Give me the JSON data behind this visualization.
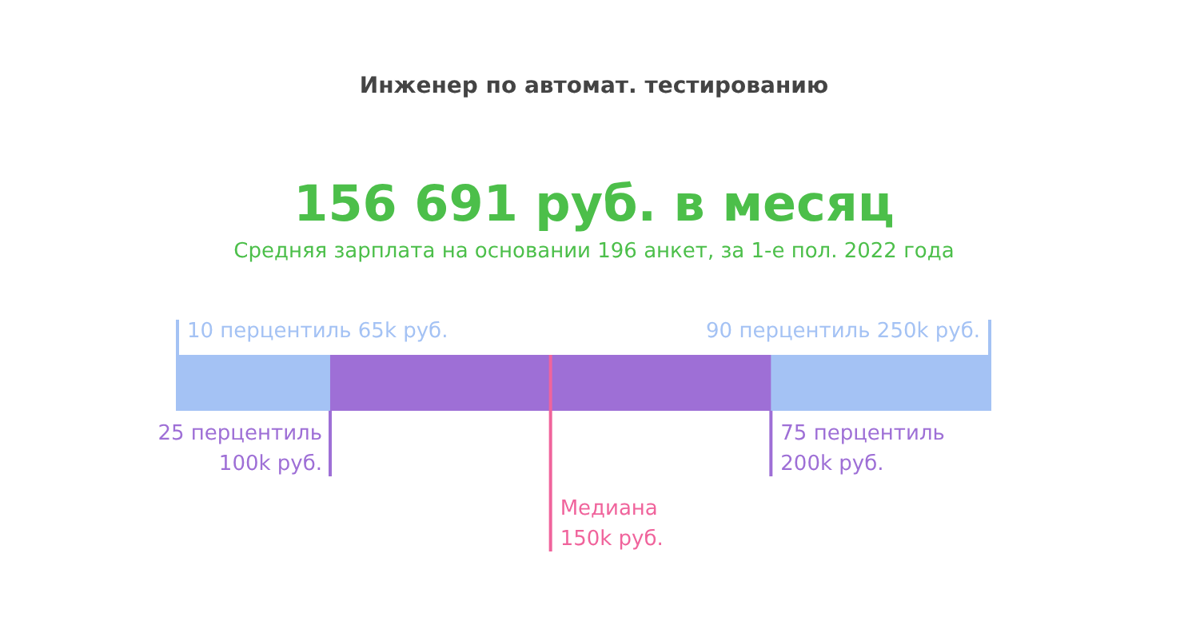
{
  "chart_data": {
    "type": "other",
    "title": "Инженер по автомат. тестированию",
    "subtitle": "156 691 руб. в месяц",
    "annotations": [
      "Средняя зарплата на основании 196 анкет, за 1-е пол. 2022 года"
    ],
    "categories": [
      "10 перцентиль",
      "25 перцентиль",
      "Медиана",
      "75 перцентиль",
      "90 перцентиль"
    ],
    "values": [
      65,
      100,
      150,
      200,
      250
    ],
    "value_labels": [
      "65k руб.",
      "100k руб.",
      "150k руб.",
      "200k руб.",
      "250k руб."
    ],
    "colors": [
      "#a4c2f4",
      "#9e6fd6",
      "#f0649c",
      "#9e6fd6",
      "#a4c2f4"
    ]
  }
}
